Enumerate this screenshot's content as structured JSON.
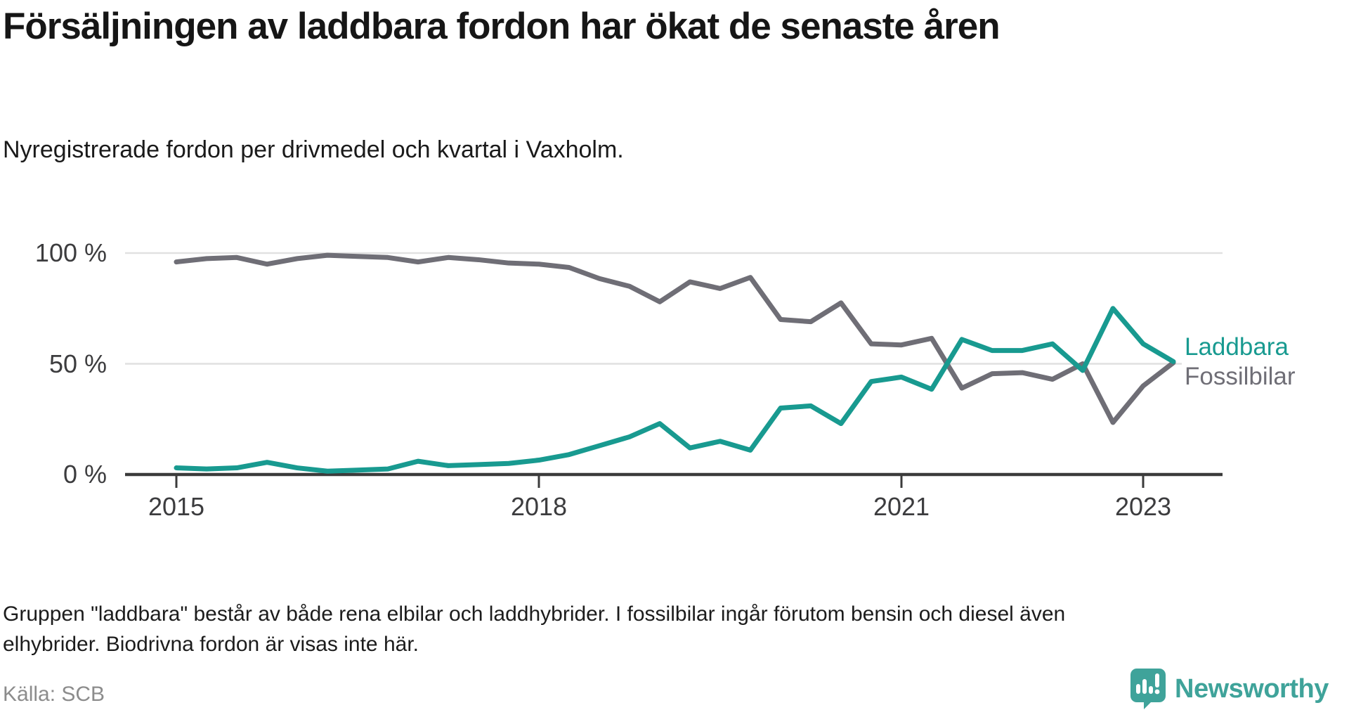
{
  "header": {
    "title": "Försäljningen av laddbara fordon har ökat de senaste åren",
    "subtitle": "Nyregistrerade fordon per drivmedel och kvartal i Vaxholm."
  },
  "chart_data": {
    "type": "line",
    "title": "Försäljningen av laddbara fordon har ökat de senaste åren",
    "subtitle": "Nyregistrerade fordon per drivmedel och kvartal i Vaxholm.",
    "x": [
      "2015 Q1",
      "2015 Q2",
      "2015 Q3",
      "2015 Q4",
      "2016 Q1",
      "2016 Q2",
      "2016 Q3",
      "2016 Q4",
      "2017 Q1",
      "2017 Q2",
      "2017 Q3",
      "2017 Q4",
      "2018 Q1",
      "2018 Q2",
      "2018 Q3",
      "2018 Q4",
      "2019 Q1",
      "2019 Q2",
      "2019 Q3",
      "2019 Q4",
      "2020 Q1",
      "2020 Q2",
      "2020 Q3",
      "2020 Q4",
      "2021 Q1",
      "2021 Q2",
      "2021 Q3",
      "2021 Q4",
      "2022 Q1",
      "2022 Q2",
      "2022 Q3",
      "2022 Q4",
      "2023 Q1",
      "2023 Q2"
    ],
    "series": [
      {
        "name": "Fossilbilar",
        "color": "#6f6e76",
        "values": [
          96,
          97.5,
          98,
          95,
          97.5,
          99,
          98.5,
          98,
          96,
          98,
          97,
          95.5,
          95,
          93.5,
          88.5,
          85,
          78,
          87,
          84,
          89,
          70,
          69,
          77.5,
          59,
          58.5,
          61.5,
          39,
          45.5,
          46,
          43,
          50,
          23.5,
          40,
          50.5
        ]
      },
      {
        "name": "Laddbara",
        "color": "#189a90",
        "values": [
          3,
          2.5,
          3,
          5.5,
          3,
          1.5,
          2,
          2.5,
          6,
          4,
          4.5,
          5,
          6.5,
          9,
          13,
          17,
          23,
          12,
          15,
          11,
          30,
          31,
          23,
          42,
          44,
          38.5,
          61,
          56,
          56,
          59,
          47,
          75,
          59,
          51
        ]
      }
    ],
    "ylim": [
      0,
      100
    ],
    "yticks": [
      {
        "value": 0,
        "label": "0 %"
      },
      {
        "value": 50,
        "label": "50 %"
      },
      {
        "value": 100,
        "label": "100 %"
      }
    ],
    "xticks": [
      {
        "index": 0,
        "label": "2015"
      },
      {
        "index": 12,
        "label": "2018"
      },
      {
        "index": 24,
        "label": "2021"
      },
      {
        "index": 32,
        "label": "2023"
      }
    ],
    "grid": true,
    "legend_position": "right-end"
  },
  "footer": {
    "note_lines": [
      "Gruppen \"laddbara\" består av både rena elbilar och laddhybrider. I fossilbilar ingår förutom bensin och diesel även",
      "elhybrider. Biodrivna fordon är visas inte här."
    ],
    "source": "Källa: SCB",
    "brand": "Newsworthy"
  }
}
